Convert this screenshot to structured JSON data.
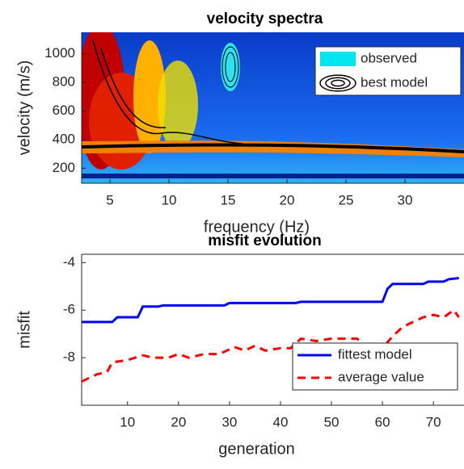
{
  "chart_data": [
    {
      "type": "contour",
      "title": "velocity spectra",
      "xlabel": "frequency (Hz)",
      "ylabel": "velocity (m/s)",
      "xlim": [
        2.6,
        35
      ],
      "xticks": [
        5,
        10,
        15,
        20,
        25,
        30
      ],
      "ylim": [
        95,
        1150
      ],
      "yticks": [
        200,
        400,
        600,
        800,
        1000
      ],
      "legend": [
        "observed",
        "best model"
      ],
      "legend_colors": [
        "#00e5ee",
        "#000000"
      ],
      "legend_position": "upper right"
    },
    {
      "type": "line",
      "title": "misfit evolution",
      "xlabel": "generation",
      "ylabel": "misfit",
      "xlim": [
        1,
        76
      ],
      "xticks": [
        10,
        20,
        30,
        40,
        50,
        60,
        70
      ],
      "ylim": [
        -10,
        -3.65
      ],
      "yticks": [
        -4,
        -6,
        -8
      ],
      "legend_position": "lower right",
      "series": [
        {
          "name": "fittest model",
          "color": "#0000ff",
          "dash": false,
          "x": [
            1,
            7,
            8,
            12,
            13,
            16,
            17,
            29,
            30,
            43,
            44,
            60,
            61,
            62,
            68,
            69,
            72,
            73,
            75
          ],
          "values": [
            -6.5,
            -6.5,
            -6.3,
            -6.3,
            -5.85,
            -5.85,
            -5.8,
            -5.8,
            -5.7,
            -5.7,
            -5.65,
            -5.65,
            -5.1,
            -4.9,
            -4.9,
            -4.8,
            -4.8,
            -4.7,
            -4.65
          ]
        },
        {
          "name": "average value",
          "color": "#ff0000",
          "dash": true,
          "x": [
            1,
            4,
            6,
            7,
            10,
            13,
            15,
            18,
            20,
            22,
            25,
            28,
            31,
            33,
            35,
            37,
            40,
            42,
            44,
            47,
            50,
            55,
            58,
            60,
            62,
            64,
            66,
            68,
            70,
            72,
            74,
            75
          ],
          "values": [
            -9,
            -8.7,
            -8.6,
            -8.2,
            -8.1,
            -7.9,
            -8.0,
            -8.0,
            -7.85,
            -8.0,
            -7.85,
            -7.85,
            -7.55,
            -7.7,
            -7.5,
            -7.7,
            -7.6,
            -7.6,
            -7.2,
            -7.3,
            -7.2,
            -7.2,
            -7.7,
            -7.6,
            -7.1,
            -6.7,
            -6.5,
            -6.3,
            -6.2,
            -6.3,
            -6.0,
            -6.3
          ]
        }
      ]
    }
  ]
}
